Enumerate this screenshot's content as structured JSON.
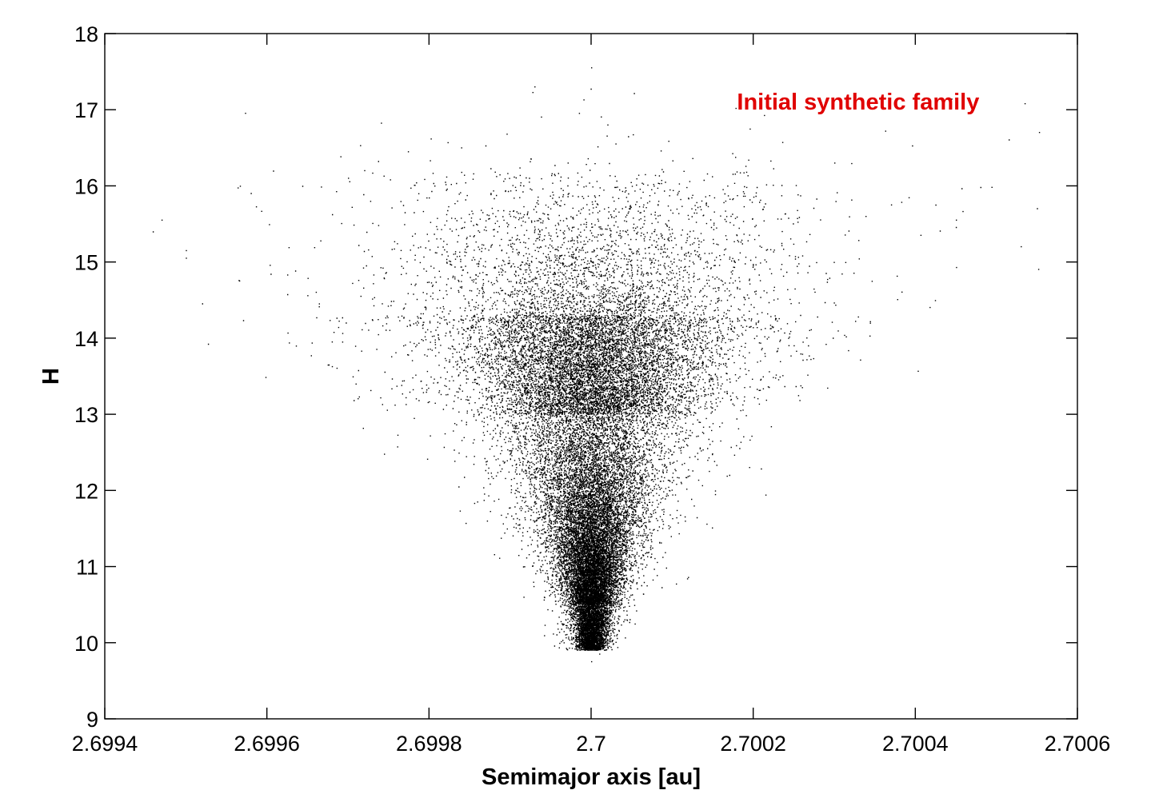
{
  "chart_data": {
    "type": "scatter",
    "title": "",
    "xlabel": "Semimajor axis [au]",
    "ylabel": "H",
    "xlim": [
      2.6994,
      2.7006
    ],
    "ylim": [
      9,
      18
    ],
    "xticks": [
      "2.6994",
      "2.6996",
      "2.6998",
      "2.7",
      "2.7002",
      "2.7004",
      "2.7006"
    ],
    "yticks": [
      "9",
      "10",
      "11",
      "12",
      "13",
      "14",
      "15",
      "16",
      "17",
      "18"
    ],
    "grid": false,
    "marker_color": "#000000",
    "annotation": {
      "text": "Initial synthetic family",
      "color": "#e00000",
      "placement": "top-right"
    },
    "distribution": {
      "center_a": 2.7,
      "H_min": 9.8,
      "H_max": 17.6,
      "approx_points": 28000,
      "shape": "V-shaped cloud: narrow spread near H=10, widening to about ±0.0005 au near H=15",
      "sample_points": [
        [
          2.6995,
          15.15
        ],
        [
          2.69947,
          15.55
        ],
        [
          2.69952,
          14.45
        ],
        [
          2.6995,
          15.05
        ],
        [
          2.69958,
          15.9
        ],
        [
          2.69972,
          16.2
        ],
        [
          2.6997,
          16.1
        ],
        [
          2.69968,
          13.95
        ],
        [
          2.69993,
          17.3
        ],
        [
          2.7,
          17.55
        ],
        [
          2.70002,
          16.8
        ],
        [
          2.70003,
          16.55
        ],
        [
          2.7003,
          16.3
        ],
        [
          2.70037,
          15.75
        ],
        [
          2.70055,
          15.7
        ],
        [
          2.70053,
          15.2
        ],
        [
          2.70045,
          15.55
        ],
        [
          2.70026,
          13.35
        ],
        [
          2.7,
          9.75
        ],
        [
          2.70001,
          9.85
        ]
      ]
    }
  }
}
